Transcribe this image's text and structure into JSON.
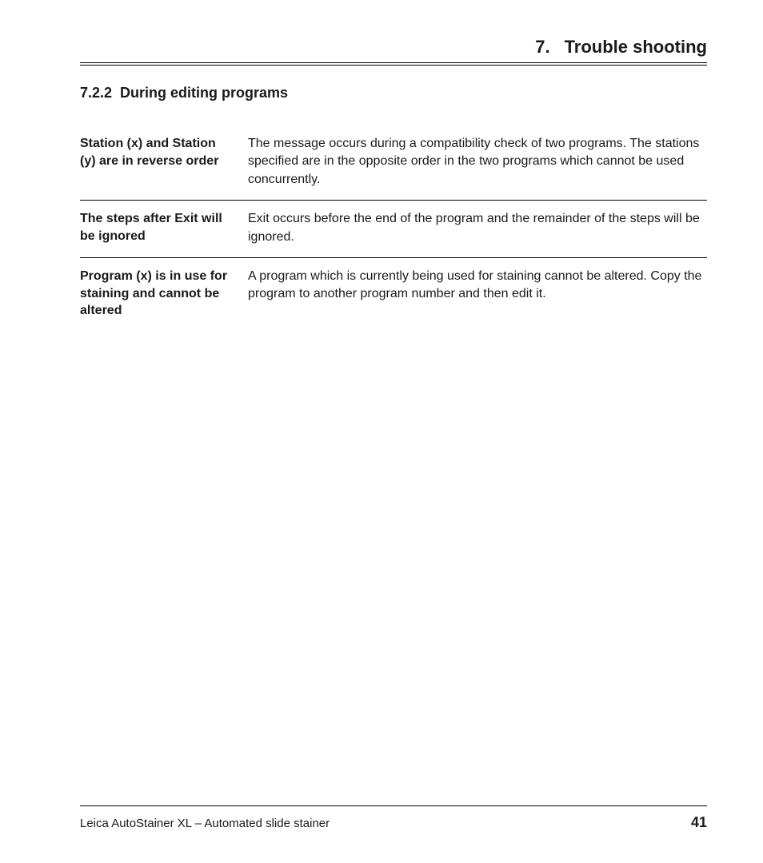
{
  "header": {
    "chapter_number": "7.",
    "chapter_title": "Trouble shooting"
  },
  "section": {
    "number": "7.2.2",
    "title": "During editing programs"
  },
  "table": {
    "rows": [
      {
        "term": "Station (x) and Station (y) are in reverse order",
        "desc": "The message occurs during a compatibility check of two programs. The stations specified are in the opposite order in the two programs which cannot be used concurrently."
      },
      {
        "term": "The steps after Exit will be ignored",
        "desc": "Exit occurs before the end  of the program and the remainder of the steps will be ignored."
      },
      {
        "term": "Program (x) is in use for staining and cannot be altered",
        "desc": "A program which is currently being used for staining cannot be altered. Copy the program to another program number and then edit it."
      }
    ]
  },
  "footer": {
    "text": "Leica AutoStainer XL – Automated slide stainer",
    "page": "41"
  }
}
